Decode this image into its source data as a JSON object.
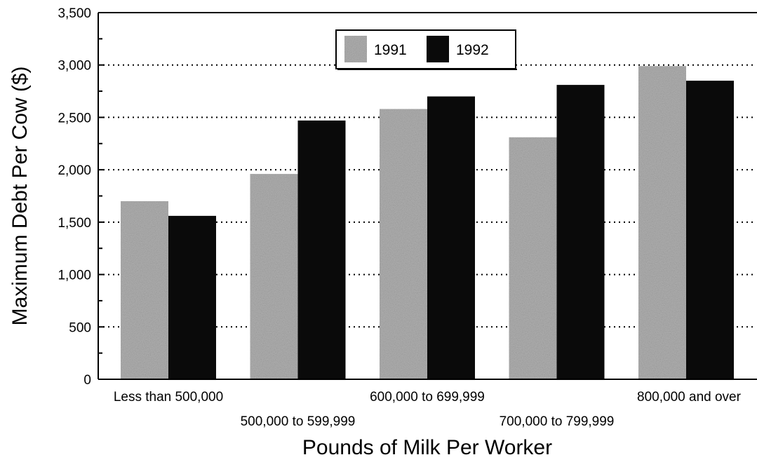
{
  "chart_data": {
    "type": "bar",
    "categories": [
      "Less than 500,000",
      "500,000 to 599,999",
      "600,000 to 699,999",
      "700,000 to 799,999",
      "800,000 and over"
    ],
    "series": [
      {
        "name": "1991",
        "values": [
          1700,
          1960,
          2580,
          2310,
          2990
        ],
        "color": "#b0b0b0"
      },
      {
        "name": "1992",
        "values": [
          1560,
          2470,
          2700,
          2810,
          2850
        ],
        "color": "#0a0a0a"
      }
    ],
    "title": "",
    "xlabel": "Pounds of Milk Per Worker",
    "ylabel": "Maximum Debt Per Cow ($)",
    "ylim": [
      0,
      3500
    ],
    "yticks": [
      0,
      500,
      1000,
      1500,
      2000,
      2500,
      3000,
      3500
    ],
    "ytick_labels": [
      "0",
      "500",
      "1,000",
      "1,500",
      "2,000",
      "2,500",
      "3,000",
      "3,500"
    ],
    "grid": "horizontal dotted",
    "legend_position": "top-center"
  }
}
